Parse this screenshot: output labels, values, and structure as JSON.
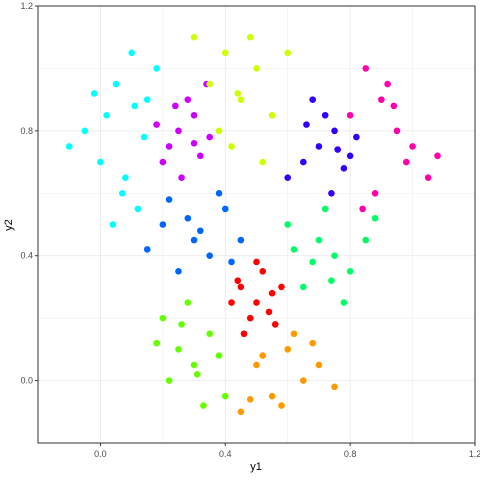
{
  "chart_data": {
    "type": "scatter",
    "title": "",
    "xlabel": "y1",
    "ylabel": "y2",
    "xlim": [
      -0.2,
      1.2
    ],
    "ylim": [
      -0.2,
      1.2
    ],
    "x_ticks": [
      0.0,
      0.4,
      0.8,
      1.2
    ],
    "x_tick_labels": [
      "0.0",
      "0.4",
      "0.8",
      "1.2"
    ],
    "y_ticks": [
      0.0,
      0.4,
      0.8,
      1.2
    ],
    "y_tick_labels": [
      "0.0",
      "0.4",
      "0.8",
      "1.2"
    ],
    "grid": true,
    "legend": "none",
    "series": [
      {
        "color": "#00ffff",
        "x": [
          0.1,
          0.05,
          -0.05,
          0.15,
          0.0,
          0.08,
          -0.1,
          0.12,
          0.02,
          0.18,
          0.07,
          -0.02,
          0.14,
          0.04,
          0.11
        ],
        "y": [
          1.05,
          0.95,
          0.8,
          0.9,
          0.7,
          0.65,
          0.75,
          0.55,
          0.85,
          1.0,
          0.6,
          0.92,
          0.78,
          0.5,
          0.88
        ]
      },
      {
        "color": "#cc00ff",
        "x": [
          0.25,
          0.3,
          0.22,
          0.35,
          0.2,
          0.28,
          0.32,
          0.18,
          0.26,
          0.34,
          0.24,
          0.3
        ],
        "y": [
          0.8,
          0.85,
          0.75,
          0.78,
          0.7,
          0.9,
          0.72,
          0.82,
          0.65,
          0.95,
          0.88,
          0.76
        ]
      },
      {
        "color": "#ccff00",
        "x": [
          0.3,
          0.4,
          0.45,
          0.5,
          0.35,
          0.55,
          0.42,
          0.48,
          0.38,
          0.52,
          0.6,
          0.44
        ],
        "y": [
          1.1,
          1.05,
          0.9,
          1.0,
          0.95,
          0.85,
          0.75,
          1.1,
          0.8,
          0.7,
          1.05,
          0.92
        ]
      },
      {
        "color": "#3300ff",
        "x": [
          0.7,
          0.75,
          0.65,
          0.8,
          0.72,
          0.6,
          0.78,
          0.68,
          0.74,
          0.82,
          0.66,
          0.76
        ],
        "y": [
          0.75,
          0.8,
          0.7,
          0.72,
          0.85,
          0.65,
          0.68,
          0.9,
          0.6,
          0.78,
          0.82,
          0.74
        ]
      },
      {
        "color": "#ff00aa",
        "x": [
          0.85,
          0.9,
          0.95,
          1.0,
          0.8,
          1.05,
          0.88,
          0.92,
          0.98,
          1.08,
          0.84,
          0.94
        ],
        "y": [
          1.0,
          0.9,
          0.8,
          0.75,
          0.85,
          0.65,
          0.6,
          0.95,
          0.7,
          0.72,
          0.55,
          0.88
        ]
      },
      {
        "color": "#0066ff",
        "x": [
          0.2,
          0.3,
          0.4,
          0.35,
          0.25,
          0.45,
          0.15,
          0.38,
          0.28,
          0.42,
          0.32,
          0.22
        ],
        "y": [
          0.5,
          0.45,
          0.55,
          0.4,
          0.35,
          0.45,
          0.42,
          0.6,
          0.52,
          0.38,
          0.48,
          0.58
        ]
      },
      {
        "color": "#00ff66",
        "x": [
          0.6,
          0.7,
          0.75,
          0.8,
          0.65,
          0.85,
          0.72,
          0.78,
          0.68,
          0.88,
          0.62,
          0.74
        ],
        "y": [
          0.5,
          0.45,
          0.4,
          0.35,
          0.3,
          0.45,
          0.55,
          0.25,
          0.38,
          0.52,
          0.42,
          0.32
        ]
      },
      {
        "color": "#ff0000",
        "x": [
          0.45,
          0.5,
          0.55,
          0.48,
          0.52,
          0.42,
          0.58,
          0.46,
          0.54,
          0.5,
          0.44,
          0.56
        ],
        "y": [
          0.3,
          0.25,
          0.28,
          0.2,
          0.35,
          0.25,
          0.3,
          0.15,
          0.22,
          0.38,
          0.32,
          0.18
        ]
      },
      {
        "color": "#66ff00",
        "x": [
          0.2,
          0.25,
          0.3,
          0.35,
          0.22,
          0.4,
          0.28,
          0.33,
          0.18,
          0.38,
          0.26,
          0.31
        ],
        "y": [
          0.2,
          0.1,
          0.05,
          0.15,
          0.0,
          -0.05,
          0.25,
          -0.08,
          0.12,
          0.08,
          0.18,
          0.02
        ]
      },
      {
        "color": "#ff9900",
        "x": [
          0.5,
          0.55,
          0.6,
          0.65,
          0.7,
          0.45,
          0.58,
          0.68,
          0.52,
          0.75,
          0.62,
          0.48
        ],
        "y": [
          0.05,
          -0.05,
          0.1,
          0.0,
          0.05,
          -0.1,
          -0.08,
          0.12,
          0.08,
          -0.02,
          0.15,
          -0.06
        ]
      }
    ]
  }
}
